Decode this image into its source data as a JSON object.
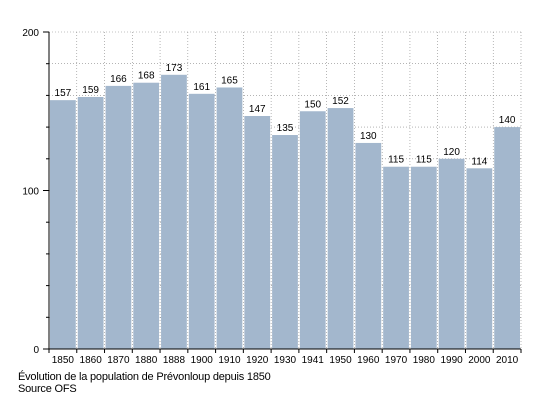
{
  "chart_data": {
    "type": "bar",
    "categories": [
      "1850",
      "1860",
      "1870",
      "1880",
      "1888",
      "1900",
      "1910",
      "1920",
      "1930",
      "1941",
      "1950",
      "1960",
      "1970",
      "1980",
      "1990",
      "2000",
      "2010"
    ],
    "values": [
      157,
      159,
      166,
      168,
      173,
      161,
      165,
      147,
      135,
      150,
      152,
      130,
      115,
      115,
      120,
      114,
      140
    ],
    "data_labels": [
      "157",
      "159",
      "166",
      "168",
      "173",
      "161",
      "165",
      "147",
      "135",
      "150",
      "152",
      "130",
      "115",
      "115",
      "120",
      "114",
      "140"
    ],
    "ylim": [
      0,
      200
    ],
    "yticks": [
      "0",
      "100",
      "200"
    ],
    "grid": true,
    "bar_color": "#a3b7cd",
    "grid_color": "#888888"
  },
  "caption": {
    "title": "Évolution de la population de Prévonloup depuis 1850",
    "source": "Source OFS"
  }
}
